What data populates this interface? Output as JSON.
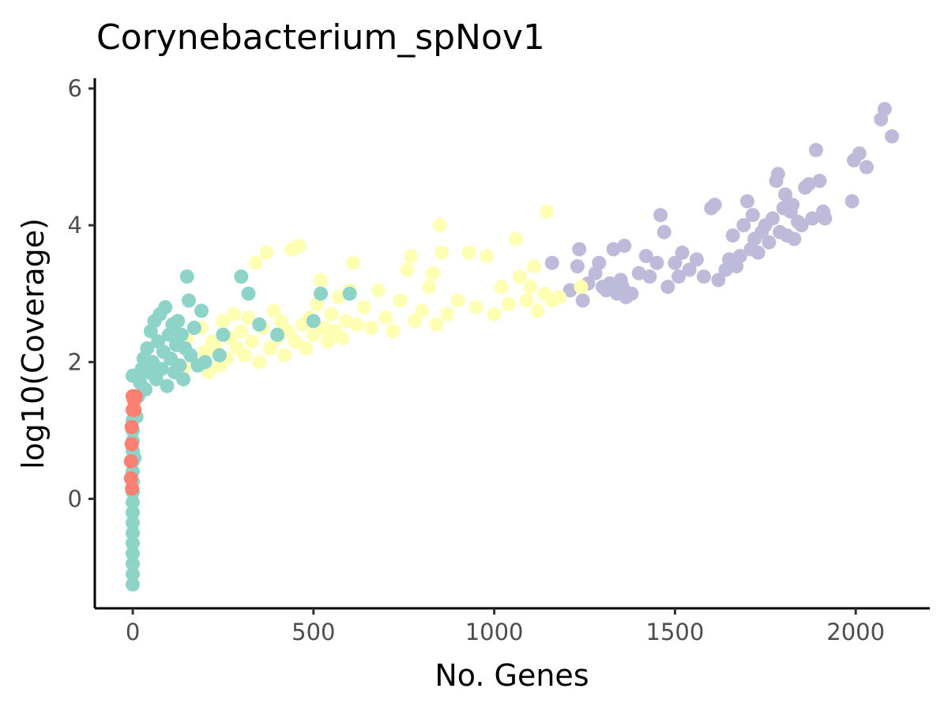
{
  "chart_data": {
    "type": "scatter",
    "title": "Corynebacterium_spNov1",
    "xlabel": "No. Genes",
    "ylabel": "log10(Coverage)",
    "xlim": [
      -105,
      2205
    ],
    "ylim": [
      -1.6,
      6.15
    ],
    "x_ticks": [
      0,
      500,
      1000,
      1500,
      2000
    ],
    "y_ticks": [
      0,
      2,
      4,
      6
    ],
    "grid": false,
    "legend": "none",
    "colors": {
      "red": "#fb8072",
      "teal": "#8dd3c7",
      "yellow": "#ffffb3",
      "lavender": "#bebada"
    },
    "series": [
      {
        "color": "#bebada",
        "points": [
          [
            1160,
            3.45
          ],
          [
            1180,
            2.95
          ],
          [
            1210,
            3.05
          ],
          [
            1230,
            3.4
          ],
          [
            1235,
            3.65
          ],
          [
            1245,
            2.9
          ],
          [
            1260,
            3.15
          ],
          [
            1280,
            3.3
          ],
          [
            1290,
            3.45
          ],
          [
            1300,
            3.1
          ],
          [
            1310,
            3.05
          ],
          [
            1320,
            3.15
          ],
          [
            1330,
            3.65
          ],
          [
            1340,
            3.0
          ],
          [
            1350,
            3.2
          ],
          [
            1355,
            3.1
          ],
          [
            1360,
            3.7
          ],
          [
            1365,
            2.95
          ],
          [
            1380,
            3.0
          ],
          [
            1400,
            3.3
          ],
          [
            1420,
            3.55
          ],
          [
            1430,
            3.25
          ],
          [
            1450,
            3.45
          ],
          [
            1460,
            4.15
          ],
          [
            1470,
            3.9
          ],
          [
            1480,
            3.1
          ],
          [
            1500,
            3.45
          ],
          [
            1510,
            3.25
          ],
          [
            1520,
            3.6
          ],
          [
            1540,
            3.35
          ],
          [
            1560,
            3.5
          ],
          [
            1580,
            3.25
          ],
          [
            1600,
            4.25
          ],
          [
            1610,
            4.3
          ],
          [
            1620,
            3.2
          ],
          [
            1640,
            3.35
          ],
          [
            1650,
            3.5
          ],
          [
            1660,
            3.85
          ],
          [
            1670,
            3.4
          ],
          [
            1680,
            3.55
          ],
          [
            1690,
            4.0
          ],
          [
            1700,
            4.35
          ],
          [
            1710,
            3.65
          ],
          [
            1715,
            4.15
          ],
          [
            1720,
            3.8
          ],
          [
            1730,
            3.6
          ],
          [
            1740,
            3.9
          ],
          [
            1750,
            4.0
          ],
          [
            1760,
            3.75
          ],
          [
            1770,
            4.1
          ],
          [
            1780,
            4.65
          ],
          [
            1785,
            4.75
          ],
          [
            1790,
            3.9
          ],
          [
            1800,
            4.25
          ],
          [
            1805,
            4.45
          ],
          [
            1810,
            3.85
          ],
          [
            1820,
            4.2
          ],
          [
            1825,
            4.3
          ],
          [
            1830,
            3.8
          ],
          [
            1840,
            4.05
          ],
          [
            1850,
            4.0
          ],
          [
            1860,
            4.55
          ],
          [
            1870,
            4.6
          ],
          [
            1880,
            4.1
          ],
          [
            1890,
            5.1
          ],
          [
            1900,
            4.65
          ],
          [
            1910,
            4.2
          ],
          [
            1915,
            4.1
          ],
          [
            1990,
            4.35
          ],
          [
            1995,
            4.95
          ],
          [
            2010,
            5.05
          ],
          [
            2030,
            4.85
          ],
          [
            2070,
            5.55
          ],
          [
            2080,
            5.7
          ],
          [
            2100,
            5.3
          ]
        ]
      },
      {
        "color": "#ffffb3",
        "points": [
          [
            140,
            1.9
          ],
          [
            150,
            2.35
          ],
          [
            170,
            2.0
          ],
          [
            180,
            1.95
          ],
          [
            190,
            2.5
          ],
          [
            200,
            2.15
          ],
          [
            210,
            1.85
          ],
          [
            220,
            2.3
          ],
          [
            230,
            2.2
          ],
          [
            240,
            1.95
          ],
          [
            250,
            2.6
          ],
          [
            260,
            2.05
          ],
          [
            270,
            2.35
          ],
          [
            280,
            2.7
          ],
          [
            290,
            2.2
          ],
          [
            300,
            2.45
          ],
          [
            310,
            2.1
          ],
          [
            320,
            2.65
          ],
          [
            330,
            2.3
          ],
          [
            340,
            3.45
          ],
          [
            350,
            2.0
          ],
          [
            360,
            2.5
          ],
          [
            370,
            3.6
          ],
          [
            380,
            2.2
          ],
          [
            390,
            2.75
          ],
          [
            400,
            2.35
          ],
          [
            410,
            2.6
          ],
          [
            420,
            2.1
          ],
          [
            430,
            2.45
          ],
          [
            440,
            3.65
          ],
          [
            450,
            2.3
          ],
          [
            460,
            3.7
          ],
          [
            470,
            2.55
          ],
          [
            480,
            2.2
          ],
          [
            490,
            2.65
          ],
          [
            500,
            2.4
          ],
          [
            510,
            2.85
          ],
          [
            520,
            3.2
          ],
          [
            530,
            2.5
          ],
          [
            540,
            2.3
          ],
          [
            550,
            2.7
          ],
          [
            560,
            2.45
          ],
          [
            570,
            2.95
          ],
          [
            580,
            2.35
          ],
          [
            590,
            2.6
          ],
          [
            600,
            3.05
          ],
          [
            610,
            3.45
          ],
          [
            620,
            2.55
          ],
          [
            640,
            2.8
          ],
          [
            660,
            2.5
          ],
          [
            680,
            3.05
          ],
          [
            700,
            2.65
          ],
          [
            720,
            2.45
          ],
          [
            740,
            2.9
          ],
          [
            760,
            3.35
          ],
          [
            770,
            3.55
          ],
          [
            780,
            2.6
          ],
          [
            800,
            2.75
          ],
          [
            820,
            3.1
          ],
          [
            830,
            3.3
          ],
          [
            840,
            2.55
          ],
          [
            850,
            4.0
          ],
          [
            855,
            3.6
          ],
          [
            870,
            2.7
          ],
          [
            900,
            2.9
          ],
          [
            930,
            3.6
          ],
          [
            950,
            2.8
          ],
          [
            980,
            3.55
          ],
          [
            1000,
            2.7
          ],
          [
            1020,
            3.1
          ],
          [
            1040,
            2.85
          ],
          [
            1060,
            3.8
          ],
          [
            1070,
            3.25
          ],
          [
            1090,
            2.9
          ],
          [
            1100,
            3.1
          ],
          [
            1110,
            3.4
          ],
          [
            1120,
            2.75
          ],
          [
            1140,
            3.0
          ],
          [
            1145,
            4.2
          ],
          [
            1160,
            2.9
          ],
          [
            1180,
            2.95
          ],
          [
            1240,
            3.1
          ]
        ]
      },
      {
        "color": "#8dd3c7",
        "points": [
          [
            0,
            -1.25
          ],
          [
            0,
            -1.1
          ],
          [
            0,
            -0.95
          ],
          [
            0,
            -0.8
          ],
          [
            0,
            -0.65
          ],
          [
            0,
            -0.5
          ],
          [
            0,
            -0.35
          ],
          [
            0,
            -0.2
          ],
          [
            0,
            -0.05
          ],
          [
            0,
            0.1
          ],
          [
            0,
            0.25
          ],
          [
            0,
            0.4
          ],
          [
            0,
            0.55
          ],
          [
            0,
            0.7
          ],
          [
            0,
            0.85
          ],
          [
            0,
            1.0
          ],
          [
            0,
            1.15
          ],
          [
            0,
            1.8
          ],
          [
            5,
            0.6
          ],
          [
            10,
            1.2
          ],
          [
            15,
            1.5
          ],
          [
            20,
            1.7
          ],
          [
            25,
            1.9
          ],
          [
            30,
            2.05
          ],
          [
            35,
            1.6
          ],
          [
            40,
            2.2
          ],
          [
            45,
            1.85
          ],
          [
            50,
            2.45
          ],
          [
            55,
            2.0
          ],
          [
            60,
            2.6
          ],
          [
            65,
            1.75
          ],
          [
            70,
            2.3
          ],
          [
            75,
            2.7
          ],
          [
            80,
            1.9
          ],
          [
            85,
            2.15
          ],
          [
            90,
            2.8
          ],
          [
            95,
            1.65
          ],
          [
            100,
            2.4
          ],
          [
            105,
            2.05
          ],
          [
            110,
            2.55
          ],
          [
            115,
            1.85
          ],
          [
            120,
            2.25
          ],
          [
            125,
            2.6
          ],
          [
            130,
            1.95
          ],
          [
            135,
            2.4
          ],
          [
            140,
            1.75
          ],
          [
            145,
            2.2
          ],
          [
            150,
            3.25
          ],
          [
            155,
            2.9
          ],
          [
            160,
            2.1
          ],
          [
            170,
            2.5
          ],
          [
            180,
            1.95
          ],
          [
            190,
            2.75
          ],
          [
            200,
            2.0
          ],
          [
            240,
            2.1
          ],
          [
            250,
            2.4
          ],
          [
            300,
            3.25
          ],
          [
            320,
            3.0
          ],
          [
            350,
            2.55
          ],
          [
            400,
            2.4
          ],
          [
            500,
            2.6
          ],
          [
            520,
            3.0
          ],
          [
            600,
            3.0
          ]
        ]
      },
      {
        "color": "#fb8072",
        "points": [
          [
            -5,
            0.3
          ],
          [
            -5,
            0.55
          ],
          [
            -3,
            0.8
          ],
          [
            -3,
            1.05
          ],
          [
            -2,
            0.15
          ],
          [
            0,
            1.3
          ],
          [
            0,
            1.5
          ],
          [
            3,
            1.45
          ],
          [
            5,
            1.3
          ],
          [
            5,
            1.45
          ],
          [
            8,
            1.5
          ]
        ]
      }
    ]
  }
}
